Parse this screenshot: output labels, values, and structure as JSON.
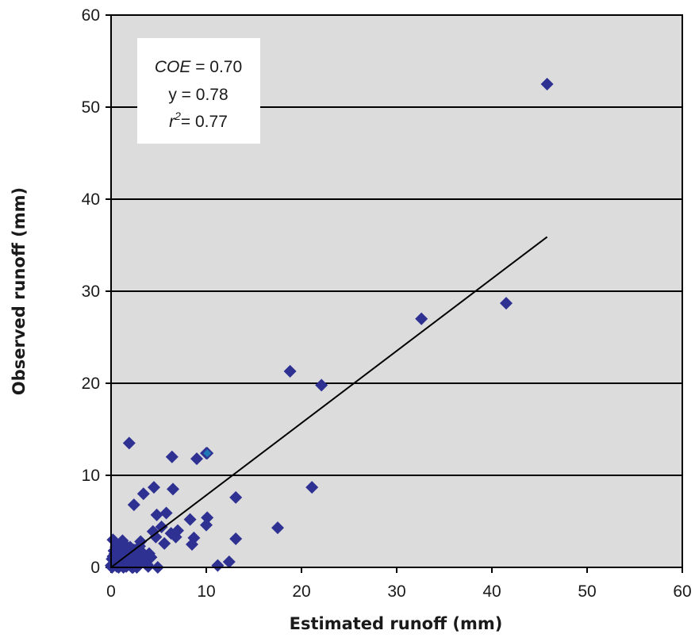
{
  "chart_data": {
    "type": "scatter",
    "xlabel": "Estimated runoff (mm)",
    "ylabel": "Observed runoff (mm)",
    "xlim": [
      0,
      60
    ],
    "ylim": [
      0,
      60
    ],
    "x_ticks": [
      "0",
      "10",
      "20",
      "30",
      "40",
      "50",
      "60"
    ],
    "y_ticks": [
      "0",
      "10",
      "20",
      "30",
      "40",
      "50",
      "60"
    ],
    "grid": "horizontal",
    "background": "#dcdcdc",
    "marker_color": "#2e3192",
    "highlight_color": "#1f78b4",
    "fit_line": {
      "x": [
        0,
        45.8
      ],
      "y": [
        0,
        35.9
      ]
    },
    "stats": {
      "coe_label": "COE",
      "coe_value": "= 0.70",
      "y_text": "y = 0.78",
      "r_label": "r",
      "r_sup": "2",
      "r_value": "= 0.77"
    },
    "series": [
      {
        "x": [
          45.8,
          41.5,
          32.6,
          22.1,
          18.8,
          21.1,
          17.5,
          10.0,
          9.0,
          6.4,
          1.9,
          13.1,
          13.1,
          12.4,
          11.2,
          6.5,
          4.5,
          3.4,
          2.4,
          5.8,
          4.8,
          8.3,
          10.1,
          10.0,
          8.7,
          8.5,
          7.0,
          6.8,
          6.3,
          5.6,
          5.3,
          4.7,
          4.4,
          4.0,
          3.5,
          3.0,
          2.7,
          2.2,
          1.6,
          1.2,
          0.8,
          0.5,
          0.2,
          1.0,
          1.8,
          2.5,
          3.1,
          3.8,
          4.2,
          0.3,
          0.6,
          1.4,
          2.0,
          2.9,
          3.3,
          0.1,
          0.4,
          0.9,
          1.3,
          1.7,
          2.3,
          2.6,
          3.6,
          4.9,
          0.0,
          0.7,
          1.5,
          2.1,
          2.8,
          0.5,
          1.1,
          1.9,
          2.4,
          3.0,
          3.9,
          0.2,
          0.8,
          1.6,
          0.3,
          1.0,
          2.2,
          0.6,
          1.2,
          2.7,
          0.1
        ],
        "y": [
          52.5,
          28.7,
          27.0,
          19.8,
          21.3,
          8.7,
          4.3,
          12.4,
          11.8,
          12.0,
          13.5,
          7.6,
          3.1,
          0.6,
          0.2,
          8.5,
          8.7,
          8.0,
          6.8,
          5.9,
          5.7,
          5.2,
          5.4,
          4.6,
          3.2,
          2.5,
          4.0,
          3.3,
          3.7,
          2.6,
          4.4,
          3.3,
          3.9,
          1.5,
          1.0,
          2.3,
          1.8,
          0.9,
          1.4,
          2.9,
          1.0,
          0.4,
          3.0,
          2.6,
          0.5,
          1.2,
          2.8,
          0.3,
          1.1,
          1.8,
          0.1,
          0.6,
          2.2,
          0.2,
          1.6,
          0.9,
          1.5,
          2.0,
          0.0,
          1.2,
          0.0,
          0.7,
          0.4,
          0.0,
          0.2,
          0.8,
          2.4,
          1.3,
          0.5,
          2.2,
          1.0,
          0.3,
          1.9,
          0.6,
          0.1,
          1.2,
          0.0,
          0.1,
          0.5,
          0.6,
          0.0,
          1.4,
          2.3,
          0.0,
          0.0
        ]
      }
    ],
    "highlighted_point": {
      "x": 10.1,
      "y": 12.4
    }
  }
}
